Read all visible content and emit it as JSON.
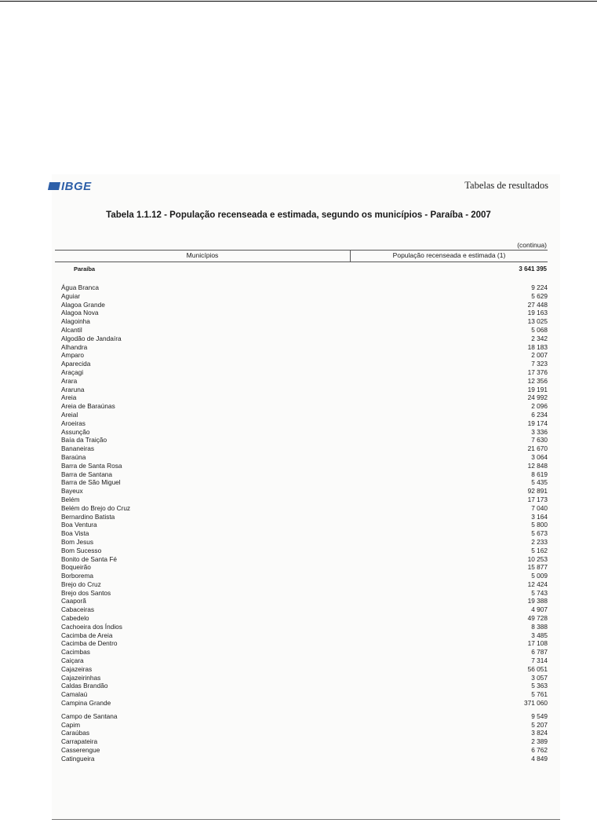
{
  "header": {
    "logo_text": "IBGE",
    "section": "Tabelas de resultados"
  },
  "table": {
    "title": "Tabela 1.1.12 - População recenseada e estimada, segundo os municípios - Paraíba - 2007",
    "continuation": "(continua)",
    "columns": [
      "Municípios",
      "População recenseada e estimada (1)"
    ],
    "total": {
      "name": "Paraíba",
      "value": "3 641 395"
    },
    "rows": [
      {
        "name": "Água Branca",
        "value": "9 224"
      },
      {
        "name": "Aguiar",
        "value": "5 629"
      },
      {
        "name": "Alagoa Grande",
        "value": "27 448"
      },
      {
        "name": "Alagoa Nova",
        "value": "19 163"
      },
      {
        "name": "Alagoinha",
        "value": "13 025"
      },
      {
        "name": "Alcantil",
        "value": "5 068"
      },
      {
        "name": "Algodão de Jandaíra",
        "value": "2 342"
      },
      {
        "name": "Alhandra",
        "value": "18 183"
      },
      {
        "name": "Amparo",
        "value": "2 007"
      },
      {
        "name": "Aparecida",
        "value": "7 323"
      },
      {
        "name": "Araçagi",
        "value": "17 376"
      },
      {
        "name": "Arara",
        "value": "12 356"
      },
      {
        "name": "Araruna",
        "value": "19 191"
      },
      {
        "name": "Areia",
        "value": "24 992"
      },
      {
        "name": "Areia de Baraúnas",
        "value": "2 096"
      },
      {
        "name": "Areial",
        "value": "6 234"
      },
      {
        "name": "Aroeiras",
        "value": "19 174"
      },
      {
        "name": "Assunção",
        "value": "3 336"
      },
      {
        "name": "Baía da Traição",
        "value": "7 630"
      },
      {
        "name": "Bananeiras",
        "value": "21 670"
      },
      {
        "name": "Baraúna",
        "value": "3 064"
      },
      {
        "name": "Barra de Santa Rosa",
        "value": "12 848"
      },
      {
        "name": "Barra de Santana",
        "value": "8 619"
      },
      {
        "name": "Barra de São Miguel",
        "value": "5 435"
      },
      {
        "name": "Bayeux",
        "value": "92 891"
      },
      {
        "name": "Belém",
        "value": "17 173"
      },
      {
        "name": "Belém do Brejo do Cruz",
        "value": "7 040"
      },
      {
        "name": "Bernardino Batista",
        "value": "3 164"
      },
      {
        "name": "Boa Ventura",
        "value": "5 800"
      },
      {
        "name": "Boa Vista",
        "value": "5 673"
      },
      {
        "name": "Bom Jesus",
        "value": "2 233"
      },
      {
        "name": "Bom Sucesso",
        "value": "5 162"
      },
      {
        "name": "Bonito de Santa Fé",
        "value": "10 253"
      },
      {
        "name": "Boqueirão",
        "value": "15 877"
      },
      {
        "name": "Borborema",
        "value": "5 009"
      },
      {
        "name": "Brejo do Cruz",
        "value": "12 424"
      },
      {
        "name": "Brejo dos Santos",
        "value": "5 743"
      },
      {
        "name": "Caaporã",
        "value": "19 388"
      },
      {
        "name": "Cabaceiras",
        "value": "4 907"
      },
      {
        "name": "Cabedelo",
        "value": "49 728"
      },
      {
        "name": "Cachoeira dos Índios",
        "value": "8 388"
      },
      {
        "name": "Cacimba de Areia",
        "value": "3 485"
      },
      {
        "name": "Cacimba de Dentro",
        "value": "17 108"
      },
      {
        "name": "Cacimbas",
        "value": "6 787"
      },
      {
        "name": "Caiçara",
        "value": "7 314"
      },
      {
        "name": "Cajazeiras",
        "value": "56 051"
      },
      {
        "name": "Cajazeirinhas",
        "value": "3 057"
      },
      {
        "name": "Caldas Brandão",
        "value": "5 363"
      },
      {
        "name": "Camalaú",
        "value": "5 761"
      },
      {
        "name": "Campina Grande",
        "value": "371 060"
      },
      {
        "name": "Campo de Santana",
        "value": "9 549"
      },
      {
        "name": "Capim",
        "value": "5 207"
      },
      {
        "name": "Caraúbas",
        "value": "3 824"
      },
      {
        "name": "Carrapateira",
        "value": "2 389"
      },
      {
        "name": "Casserengue",
        "value": "6 762"
      },
      {
        "name": "Catingueira",
        "value": "4 849"
      }
    ]
  }
}
